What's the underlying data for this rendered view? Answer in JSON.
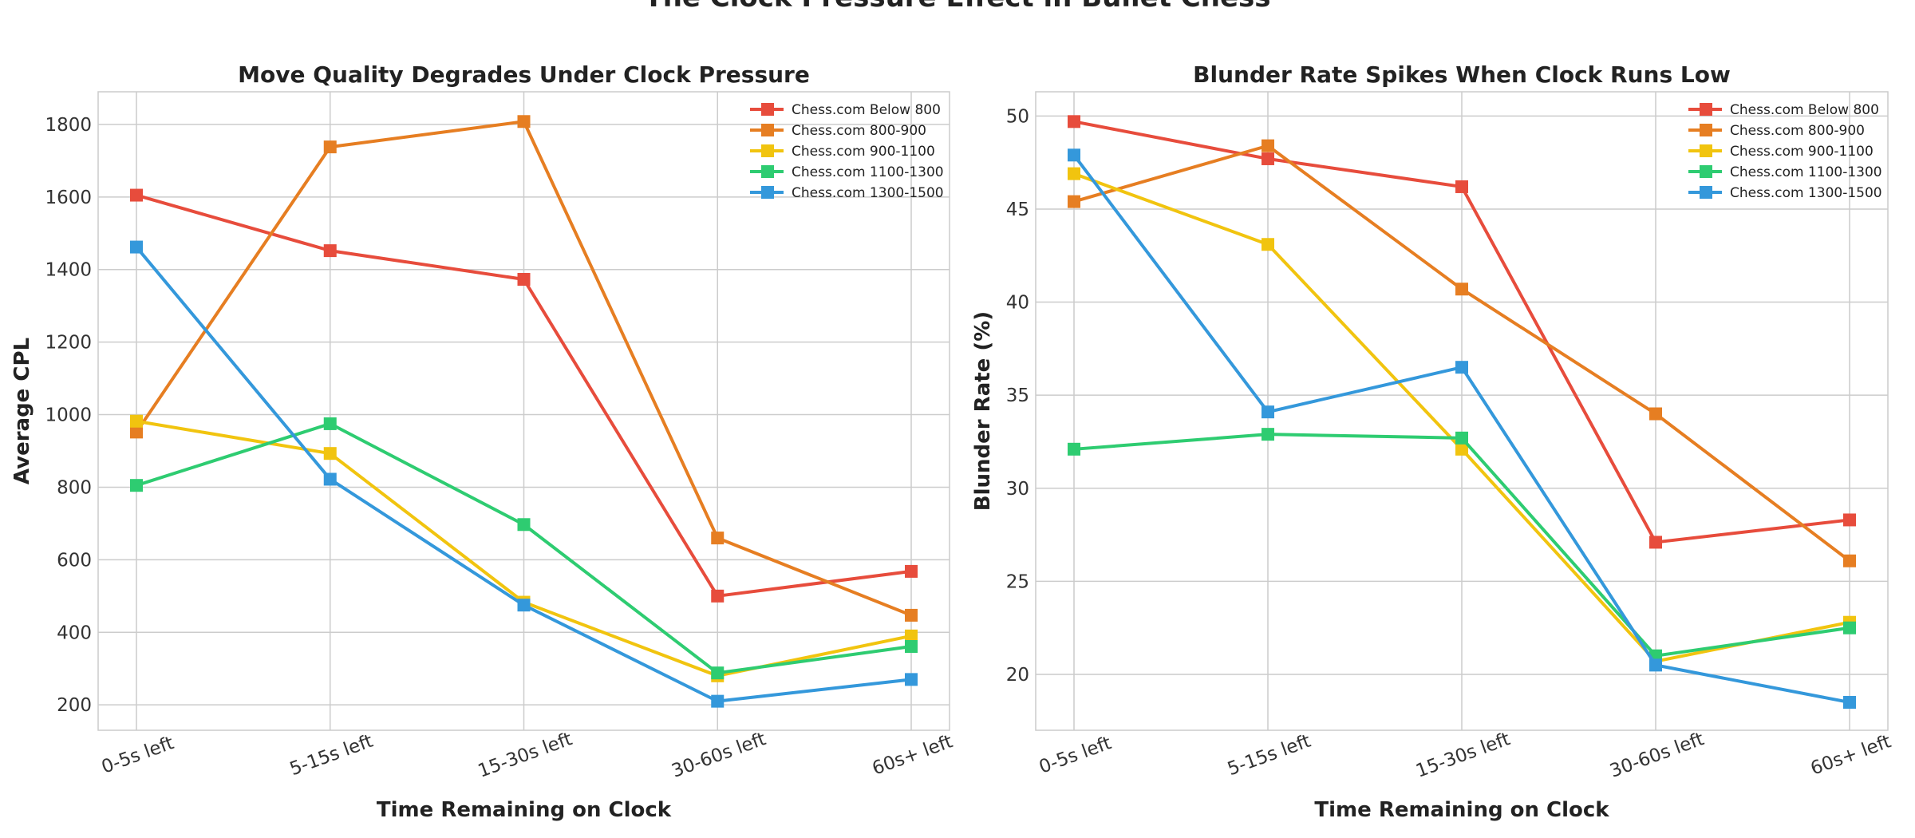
{
  "figure_title": "The Clock Pressure Effect in Bullet Chess",
  "chart_data": [
    {
      "type": "line",
      "title": "Move Quality Degrades Under Clock Pressure",
      "xlabel": "Time Remaining on Clock",
      "ylabel": "Average CPL",
      "categories": [
        "0-5s left",
        "5-15s left",
        "15-30s left",
        "30-60s left",
        "60s+ left"
      ],
      "ylim": [
        130,
        1890
      ],
      "yticks": [
        200,
        400,
        600,
        800,
        1000,
        1200,
        1400,
        1600,
        1800
      ],
      "grid": true,
      "legend_position": "top-right",
      "series": [
        {
          "name": "Chess.com Below 800",
          "color": "#e74c3c",
          "values": [
            1605,
            1452,
            1373,
            500,
            568
          ]
        },
        {
          "name": "Chess.com 800-900",
          "color": "#e67e22",
          "values": [
            952,
            1738,
            1808,
            660,
            447
          ]
        },
        {
          "name": "Chess.com 900-1100",
          "color": "#f1c40f",
          "values": [
            982,
            893,
            483,
            280,
            390
          ]
        },
        {
          "name": "Chess.com 1100-1300",
          "color": "#2ecc71",
          "values": [
            805,
            975,
            697,
            288,
            361
          ]
        },
        {
          "name": "Chess.com 1300-1500",
          "color": "#3498db",
          "values": [
            1462,
            822,
            475,
            210,
            270
          ]
        }
      ]
    },
    {
      "type": "line",
      "title": "Blunder Rate Spikes When Clock Runs Low",
      "xlabel": "Time Remaining on Clock",
      "ylabel": "Blunder Rate (%)",
      "categories": [
        "0-5s left",
        "5-15s left",
        "15-30s left",
        "30-60s left",
        "60s+ left"
      ],
      "ylim": [
        17,
        51.3
      ],
      "yticks": [
        20,
        25,
        30,
        35,
        40,
        45,
        50
      ],
      "grid": true,
      "legend_position": "top-right",
      "series": [
        {
          "name": "Chess.com Below 800",
          "color": "#e74c3c",
          "values": [
            49.7,
            47.7,
            46.2,
            27.1,
            28.3
          ]
        },
        {
          "name": "Chess.com 800-900",
          "color": "#e67e22",
          "values": [
            45.4,
            48.4,
            40.7,
            34.0,
            26.1
          ]
        },
        {
          "name": "Chess.com 900-1100",
          "color": "#f1c40f",
          "values": [
            46.9,
            43.1,
            32.1,
            20.7,
            22.8
          ]
        },
        {
          "name": "Chess.com 1100-1300",
          "color": "#2ecc71",
          "values": [
            32.1,
            32.9,
            32.7,
            21.0,
            22.5
          ]
        },
        {
          "name": "Chess.com 1300-1500",
          "color": "#3498db",
          "values": [
            47.9,
            34.1,
            36.5,
            20.5,
            18.5
          ]
        }
      ]
    }
  ]
}
